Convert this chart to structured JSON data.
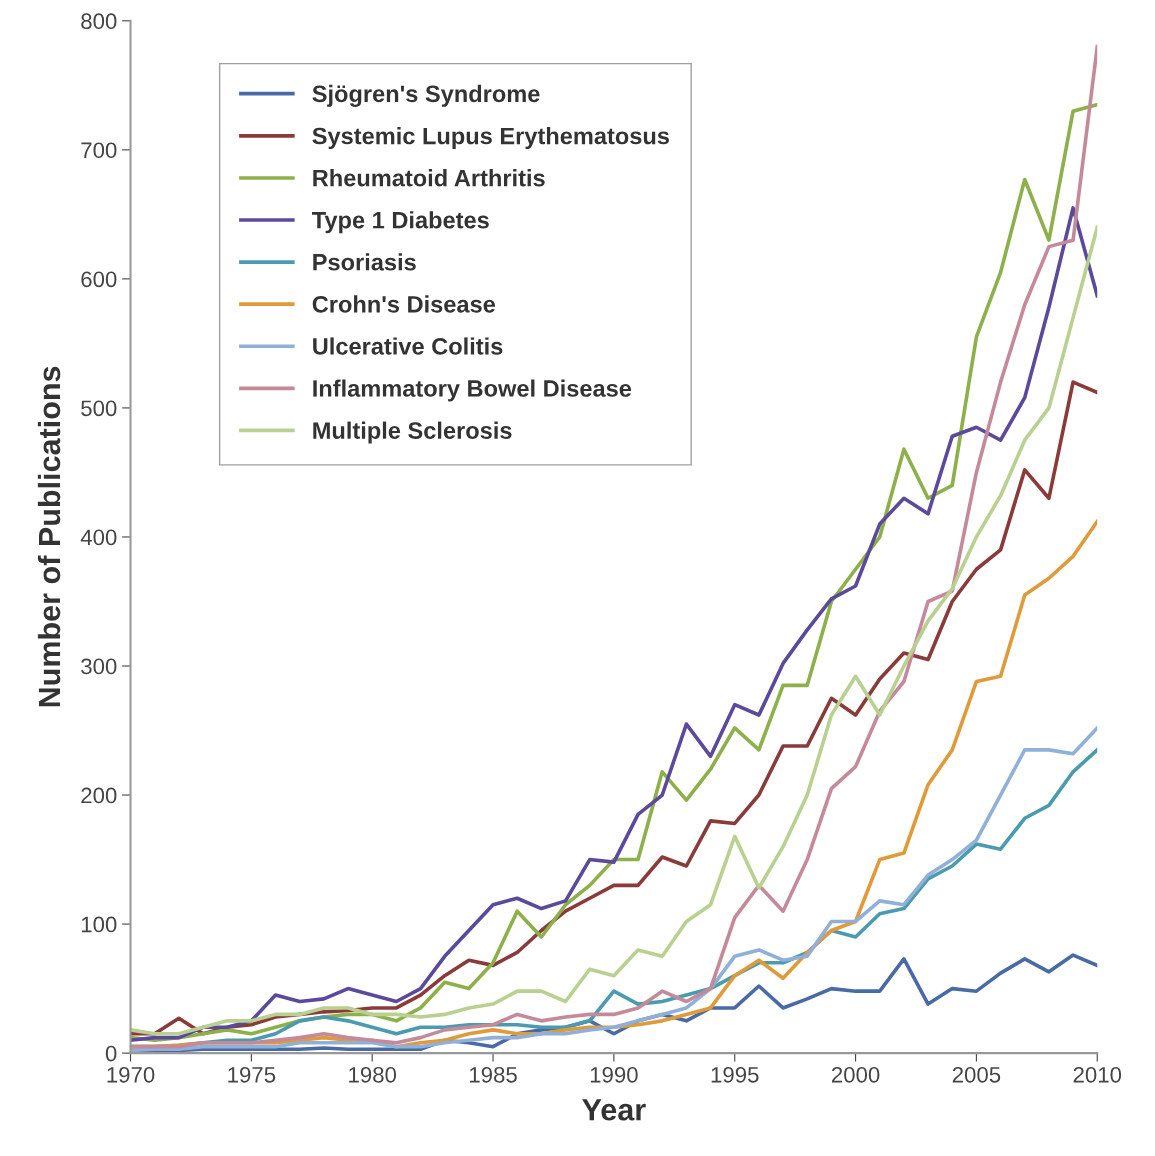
{
  "chart_data": {
    "type": "line",
    "xlabel": "Year",
    "ylabel": "Number of Publications",
    "x": [
      1970,
      1971,
      1972,
      1973,
      1974,
      1975,
      1976,
      1977,
      1978,
      1979,
      1980,
      1981,
      1982,
      1983,
      1984,
      1985,
      1986,
      1987,
      1988,
      1989,
      1990,
      1991,
      1992,
      1993,
      1994,
      1995,
      1996,
      1997,
      1998,
      1999,
      2000,
      2001,
      2002,
      2003,
      2004,
      2005,
      2006,
      2007,
      2008,
      2009,
      2010
    ],
    "xlim": [
      1970,
      2010
    ],
    "xticks": [
      1970,
      1975,
      1980,
      1985,
      1990,
      1995,
      2000,
      2005,
      2010
    ],
    "ylim": [
      0,
      800
    ],
    "yticks": [
      0,
      100,
      200,
      300,
      400,
      500,
      600,
      700,
      800
    ],
    "grid": false,
    "legend": "top left",
    "marker": "none",
    "line_style": "solid",
    "series": [
      {
        "name": "Sjögren's Syndrome",
        "color": "#4a6aa5",
        "values": [
          2,
          2,
          2,
          3,
          3,
          3,
          3,
          3,
          4,
          3,
          3,
          3,
          3,
          10,
          8,
          5,
          15,
          18,
          20,
          25,
          15,
          25,
          30,
          25,
          35,
          35,
          52,
          35,
          42,
          50,
          48,
          48,
          73,
          38,
          50,
          48,
          62,
          73,
          63,
          76,
          68
        ]
      },
      {
        "name": "Systemic Lupus Erythematosus",
        "color": "#8b3a3a",
        "values": [
          15,
          15,
          27,
          15,
          20,
          22,
          28,
          30,
          32,
          33,
          35,
          35,
          45,
          60,
          72,
          68,
          78,
          95,
          110,
          120,
          130,
          130,
          152,
          145,
          180,
          178,
          200,
          238,
          238,
          275,
          262,
          290,
          310,
          305,
          350,
          375,
          390,
          452,
          430,
          520,
          512
        ]
      },
      {
        "name": "Rheumatoid Arthritis",
        "color": "#8db04a",
        "values": [
          12,
          10,
          12,
          15,
          18,
          15,
          20,
          25,
          28,
          30,
          30,
          25,
          35,
          55,
          50,
          70,
          110,
          90,
          115,
          130,
          150,
          150,
          218,
          196,
          220,
          252,
          235,
          285,
          285,
          350,
          375,
          400,
          468,
          430,
          440,
          555,
          605,
          677,
          630,
          730,
          735
        ]
      },
      {
        "name": "Type 1 Diabetes",
        "color": "#5b4a9b",
        "values": [
          10,
          12,
          12,
          20,
          20,
          25,
          45,
          40,
          42,
          50,
          45,
          40,
          50,
          75,
          95,
          115,
          120,
          112,
          118,
          150,
          148,
          185,
          200,
          255,
          230,
          270,
          262,
          302,
          328,
          352,
          362,
          410,
          430,
          418,
          478,
          485,
          475,
          508,
          578,
          655,
          587
        ]
      },
      {
        "name": "Psoriasis",
        "color": "#4a9ab0",
        "values": [
          5,
          5,
          6,
          8,
          10,
          10,
          15,
          25,
          28,
          25,
          20,
          15,
          20,
          20,
          22,
          22,
          22,
          20,
          20,
          25,
          48,
          38,
          40,
          45,
          50,
          60,
          70,
          70,
          78,
          95,
          90,
          108,
          112,
          135,
          145,
          162,
          158,
          182,
          192,
          218,
          235
        ]
      },
      {
        "name": "Crohn's Disease",
        "color": "#e09a3a",
        "values": [
          5,
          5,
          6,
          8,
          8,
          8,
          8,
          10,
          12,
          10,
          10,
          5,
          8,
          10,
          15,
          18,
          15,
          15,
          18,
          20,
          20,
          22,
          25,
          30,
          35,
          60,
          72,
          58,
          78,
          95,
          102,
          150,
          155,
          208,
          235,
          288,
          292,
          355,
          368,
          385,
          412
        ]
      },
      {
        "name": "Ulcerative Colitis",
        "color": "#8fb0d8",
        "values": [
          2,
          3,
          3,
          5,
          5,
          5,
          5,
          8,
          8,
          8,
          8,
          5,
          5,
          8,
          10,
          12,
          12,
          15,
          15,
          18,
          20,
          25,
          30,
          35,
          50,
          75,
          80,
          72,
          75,
          102,
          102,
          118,
          115,
          138,
          150,
          165,
          200,
          235,
          235,
          232,
          252
        ]
      },
      {
        "name": "Inflammatory Bowel Disease",
        "color": "#c48a9a",
        "values": [
          5,
          5,
          5,
          8,
          8,
          8,
          10,
          12,
          15,
          12,
          10,
          8,
          12,
          18,
          20,
          22,
          30,
          25,
          28,
          30,
          30,
          35,
          48,
          40,
          50,
          105,
          130,
          110,
          150,
          205,
          222,
          265,
          288,
          350,
          358,
          450,
          520,
          580,
          625,
          630,
          780
        ]
      },
      {
        "name": "Multiple Sclerosis",
        "color": "#b8d090",
        "values": [
          18,
          15,
          15,
          20,
          25,
          25,
          30,
          30,
          35,
          35,
          30,
          30,
          28,
          30,
          35,
          38,
          48,
          48,
          40,
          65,
          60,
          80,
          75,
          102,
          115,
          168,
          128,
          160,
          200,
          262,
          292,
          262,
          300,
          335,
          360,
          400,
          432,
          475,
          500,
          570,
          640
        ]
      }
    ]
  }
}
